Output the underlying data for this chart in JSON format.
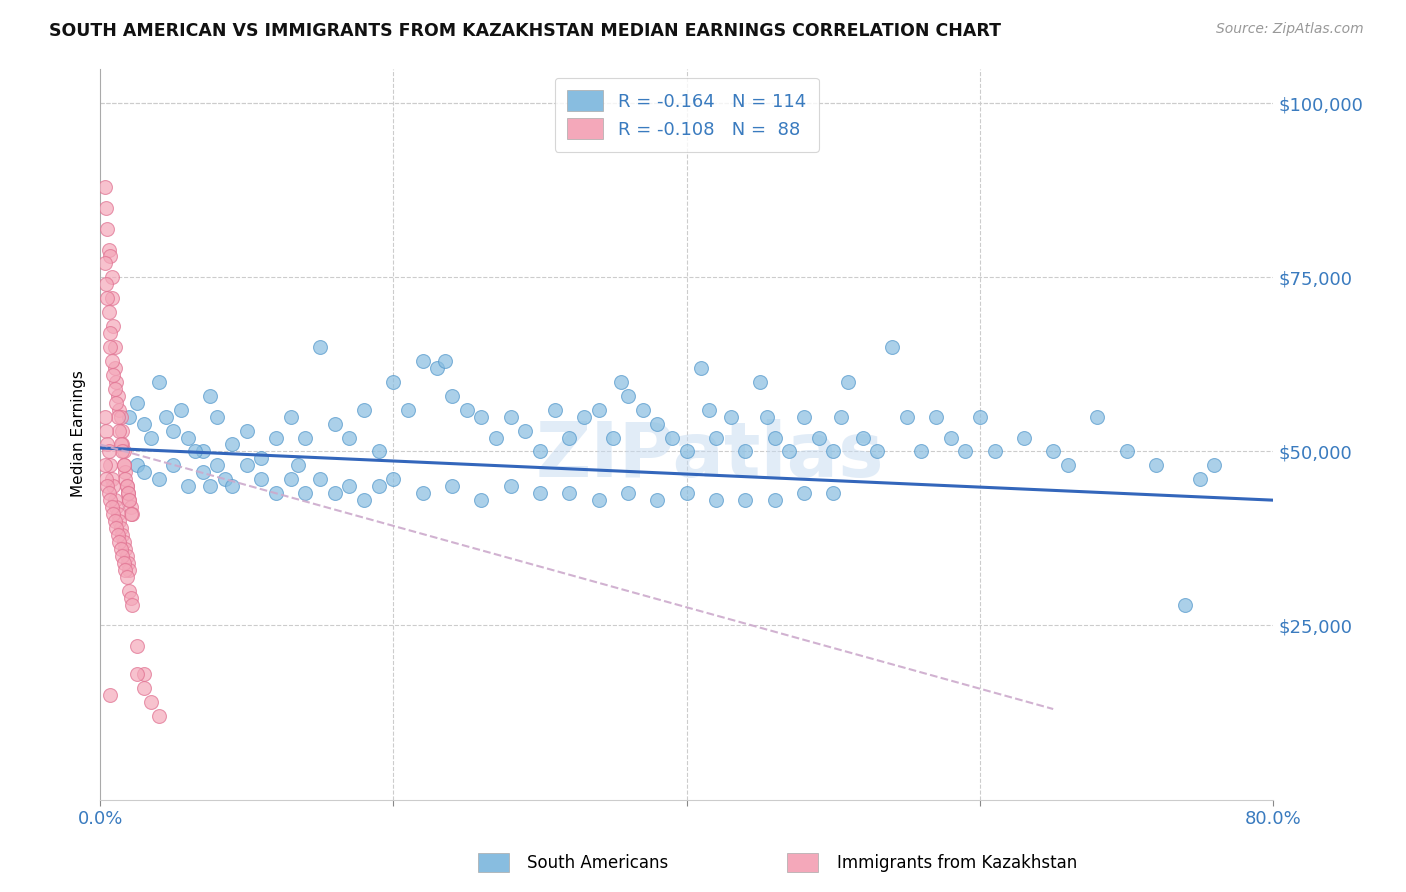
{
  "title": "SOUTH AMERICAN VS IMMIGRANTS FROM KAZAKHSTAN MEDIAN EARNINGS CORRELATION CHART",
  "source": "Source: ZipAtlas.com",
  "ylabel": "Median Earnings",
  "xlim": [
    0,
    0.8
  ],
  "ylim": [
    0,
    105000
  ],
  "yticks": [
    25000,
    50000,
    75000,
    100000
  ],
  "ytick_labels": [
    "$25,000",
    "$50,000",
    "$75,000",
    "$100,000"
  ],
  "xticks": [
    0.0,
    0.2,
    0.4,
    0.6,
    0.8
  ],
  "xtick_labels": [
    "0.0%",
    "",
    "",
    "",
    "80.0%"
  ],
  "blue_color": "#88bde0",
  "blue_edge": "#5599cc",
  "pink_color": "#f4a8ba",
  "pink_edge": "#e07090",
  "trend_blue_color": "#3366bb",
  "trend_pink_color": "#ccaacc",
  "watermark": "ZIPatlas",
  "blue_trend_x": [
    0.0,
    0.8
  ],
  "blue_trend_y": [
    50500,
    43000
  ],
  "pink_trend_x": [
    0.0,
    0.65
  ],
  "pink_trend_y": [
    51000,
    13000
  ],
  "blue_x": [
    0.02,
    0.025,
    0.03,
    0.035,
    0.04,
    0.045,
    0.05,
    0.055,
    0.06,
    0.07,
    0.075,
    0.08,
    0.09,
    0.1,
    0.11,
    0.12,
    0.13,
    0.14,
    0.15,
    0.16,
    0.17,
    0.18,
    0.19,
    0.2,
    0.21,
    0.22,
    0.23,
    0.235,
    0.24,
    0.25,
    0.26,
    0.27,
    0.28,
    0.29,
    0.3,
    0.31,
    0.32,
    0.33,
    0.34,
    0.35,
    0.355,
    0.36,
    0.37,
    0.38,
    0.39,
    0.4,
    0.41,
    0.415,
    0.42,
    0.43,
    0.44,
    0.45,
    0.455,
    0.46,
    0.47,
    0.48,
    0.49,
    0.5,
    0.505,
    0.51,
    0.52,
    0.53,
    0.54,
    0.55,
    0.56,
    0.57,
    0.58,
    0.59,
    0.6,
    0.61,
    0.63,
    0.65,
    0.66,
    0.68,
    0.7,
    0.72,
    0.74,
    0.75,
    0.76,
    0.025,
    0.03,
    0.04,
    0.05,
    0.06,
    0.065,
    0.07,
    0.075,
    0.08,
    0.085,
    0.09,
    0.1,
    0.11,
    0.12,
    0.13,
    0.135,
    0.14,
    0.15,
    0.16,
    0.17,
    0.18,
    0.19,
    0.2,
    0.22,
    0.24,
    0.26,
    0.28,
    0.3,
    0.32,
    0.34,
    0.36,
    0.38,
    0.4,
    0.42,
    0.44,
    0.46,
    0.48,
    0.5
  ],
  "blue_y": [
    55000,
    57000,
    54000,
    52000,
    60000,
    55000,
    53000,
    56000,
    52000,
    50000,
    58000,
    55000,
    51000,
    53000,
    49000,
    52000,
    55000,
    52000,
    65000,
    54000,
    52000,
    56000,
    50000,
    60000,
    56000,
    63000,
    62000,
    63000,
    58000,
    56000,
    55000,
    52000,
    55000,
    53000,
    50000,
    56000,
    52000,
    55000,
    56000,
    52000,
    60000,
    58000,
    56000,
    54000,
    52000,
    50000,
    62000,
    56000,
    52000,
    55000,
    50000,
    60000,
    55000,
    52000,
    50000,
    55000,
    52000,
    50000,
    55000,
    60000,
    52000,
    50000,
    65000,
    55000,
    50000,
    55000,
    52000,
    50000,
    55000,
    50000,
    52000,
    50000,
    48000,
    55000,
    50000,
    48000,
    28000,
    46000,
    48000,
    48000,
    47000,
    46000,
    48000,
    45000,
    50000,
    47000,
    45000,
    48000,
    46000,
    45000,
    48000,
    46000,
    44000,
    46000,
    48000,
    44000,
    46000,
    44000,
    45000,
    43000,
    45000,
    46000,
    44000,
    45000,
    43000,
    45000,
    44000,
    44000,
    43000,
    44000,
    43000,
    44000,
    43000,
    43000,
    43000,
    44000,
    44000
  ],
  "pink_x": [
    0.003,
    0.004,
    0.005,
    0.006,
    0.007,
    0.008,
    0.008,
    0.009,
    0.01,
    0.01,
    0.011,
    0.012,
    0.013,
    0.014,
    0.015,
    0.015,
    0.016,
    0.016,
    0.017,
    0.018,
    0.019,
    0.02,
    0.021,
    0.022,
    0.003,
    0.004,
    0.005,
    0.006,
    0.007,
    0.007,
    0.008,
    0.009,
    0.01,
    0.011,
    0.012,
    0.013,
    0.014,
    0.015,
    0.016,
    0.017,
    0.018,
    0.019,
    0.02,
    0.021,
    0.003,
    0.004,
    0.005,
    0.006,
    0.007,
    0.008,
    0.009,
    0.01,
    0.011,
    0.012,
    0.013,
    0.014,
    0.015,
    0.016,
    0.017,
    0.018,
    0.019,
    0.02,
    0.003,
    0.004,
    0.005,
    0.006,
    0.007,
    0.008,
    0.009,
    0.01,
    0.011,
    0.012,
    0.013,
    0.014,
    0.015,
    0.016,
    0.017,
    0.018,
    0.02,
    0.021,
    0.022,
    0.025,
    0.03,
    0.007,
    0.025,
    0.03,
    0.035,
    0.04
  ],
  "pink_y": [
    88000,
    85000,
    82000,
    79000,
    78000,
    75000,
    72000,
    68000,
    65000,
    62000,
    60000,
    58000,
    56000,
    55000,
    53000,
    51000,
    50000,
    48000,
    47000,
    45000,
    44000,
    43000,
    42000,
    41000,
    77000,
    74000,
    72000,
    70000,
    67000,
    65000,
    63000,
    61000,
    59000,
    57000,
    55000,
    53000,
    51000,
    50000,
    48000,
    46000,
    45000,
    44000,
    43000,
    41000,
    55000,
    53000,
    51000,
    50000,
    48000,
    46000,
    45000,
    43000,
    42000,
    41000,
    40000,
    39000,
    38000,
    37000,
    36000,
    35000,
    34000,
    33000,
    48000,
    46000,
    45000,
    44000,
    43000,
    42000,
    41000,
    40000,
    39000,
    38000,
    37000,
    36000,
    35000,
    34000,
    33000,
    32000,
    30000,
    29000,
    28000,
    22000,
    18000,
    15000,
    18000,
    16000,
    14000,
    12000
  ]
}
